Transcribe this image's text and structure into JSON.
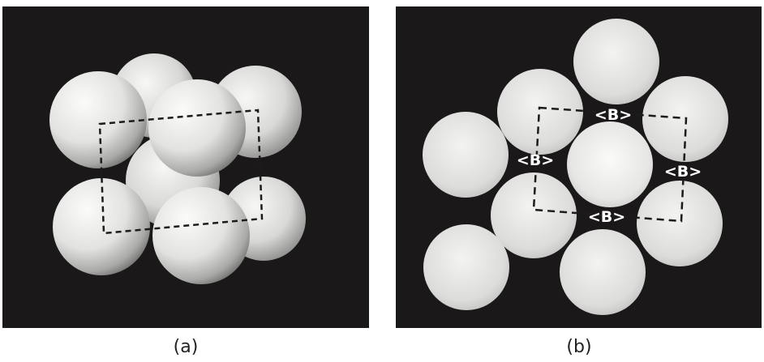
{
  "figure": {
    "panel_a": {
      "caption": "(a)"
    },
    "panel_b": {
      "caption": "(b)",
      "labels": [
        "<B>",
        "<B>",
        "<B>",
        "<B>"
      ]
    }
  },
  "colors": {
    "background": "#1a1718",
    "sphere_light": "#f4f4f2",
    "sphere_dark": "#8a8a88",
    "dashed_line": "#1c1c1c"
  }
}
